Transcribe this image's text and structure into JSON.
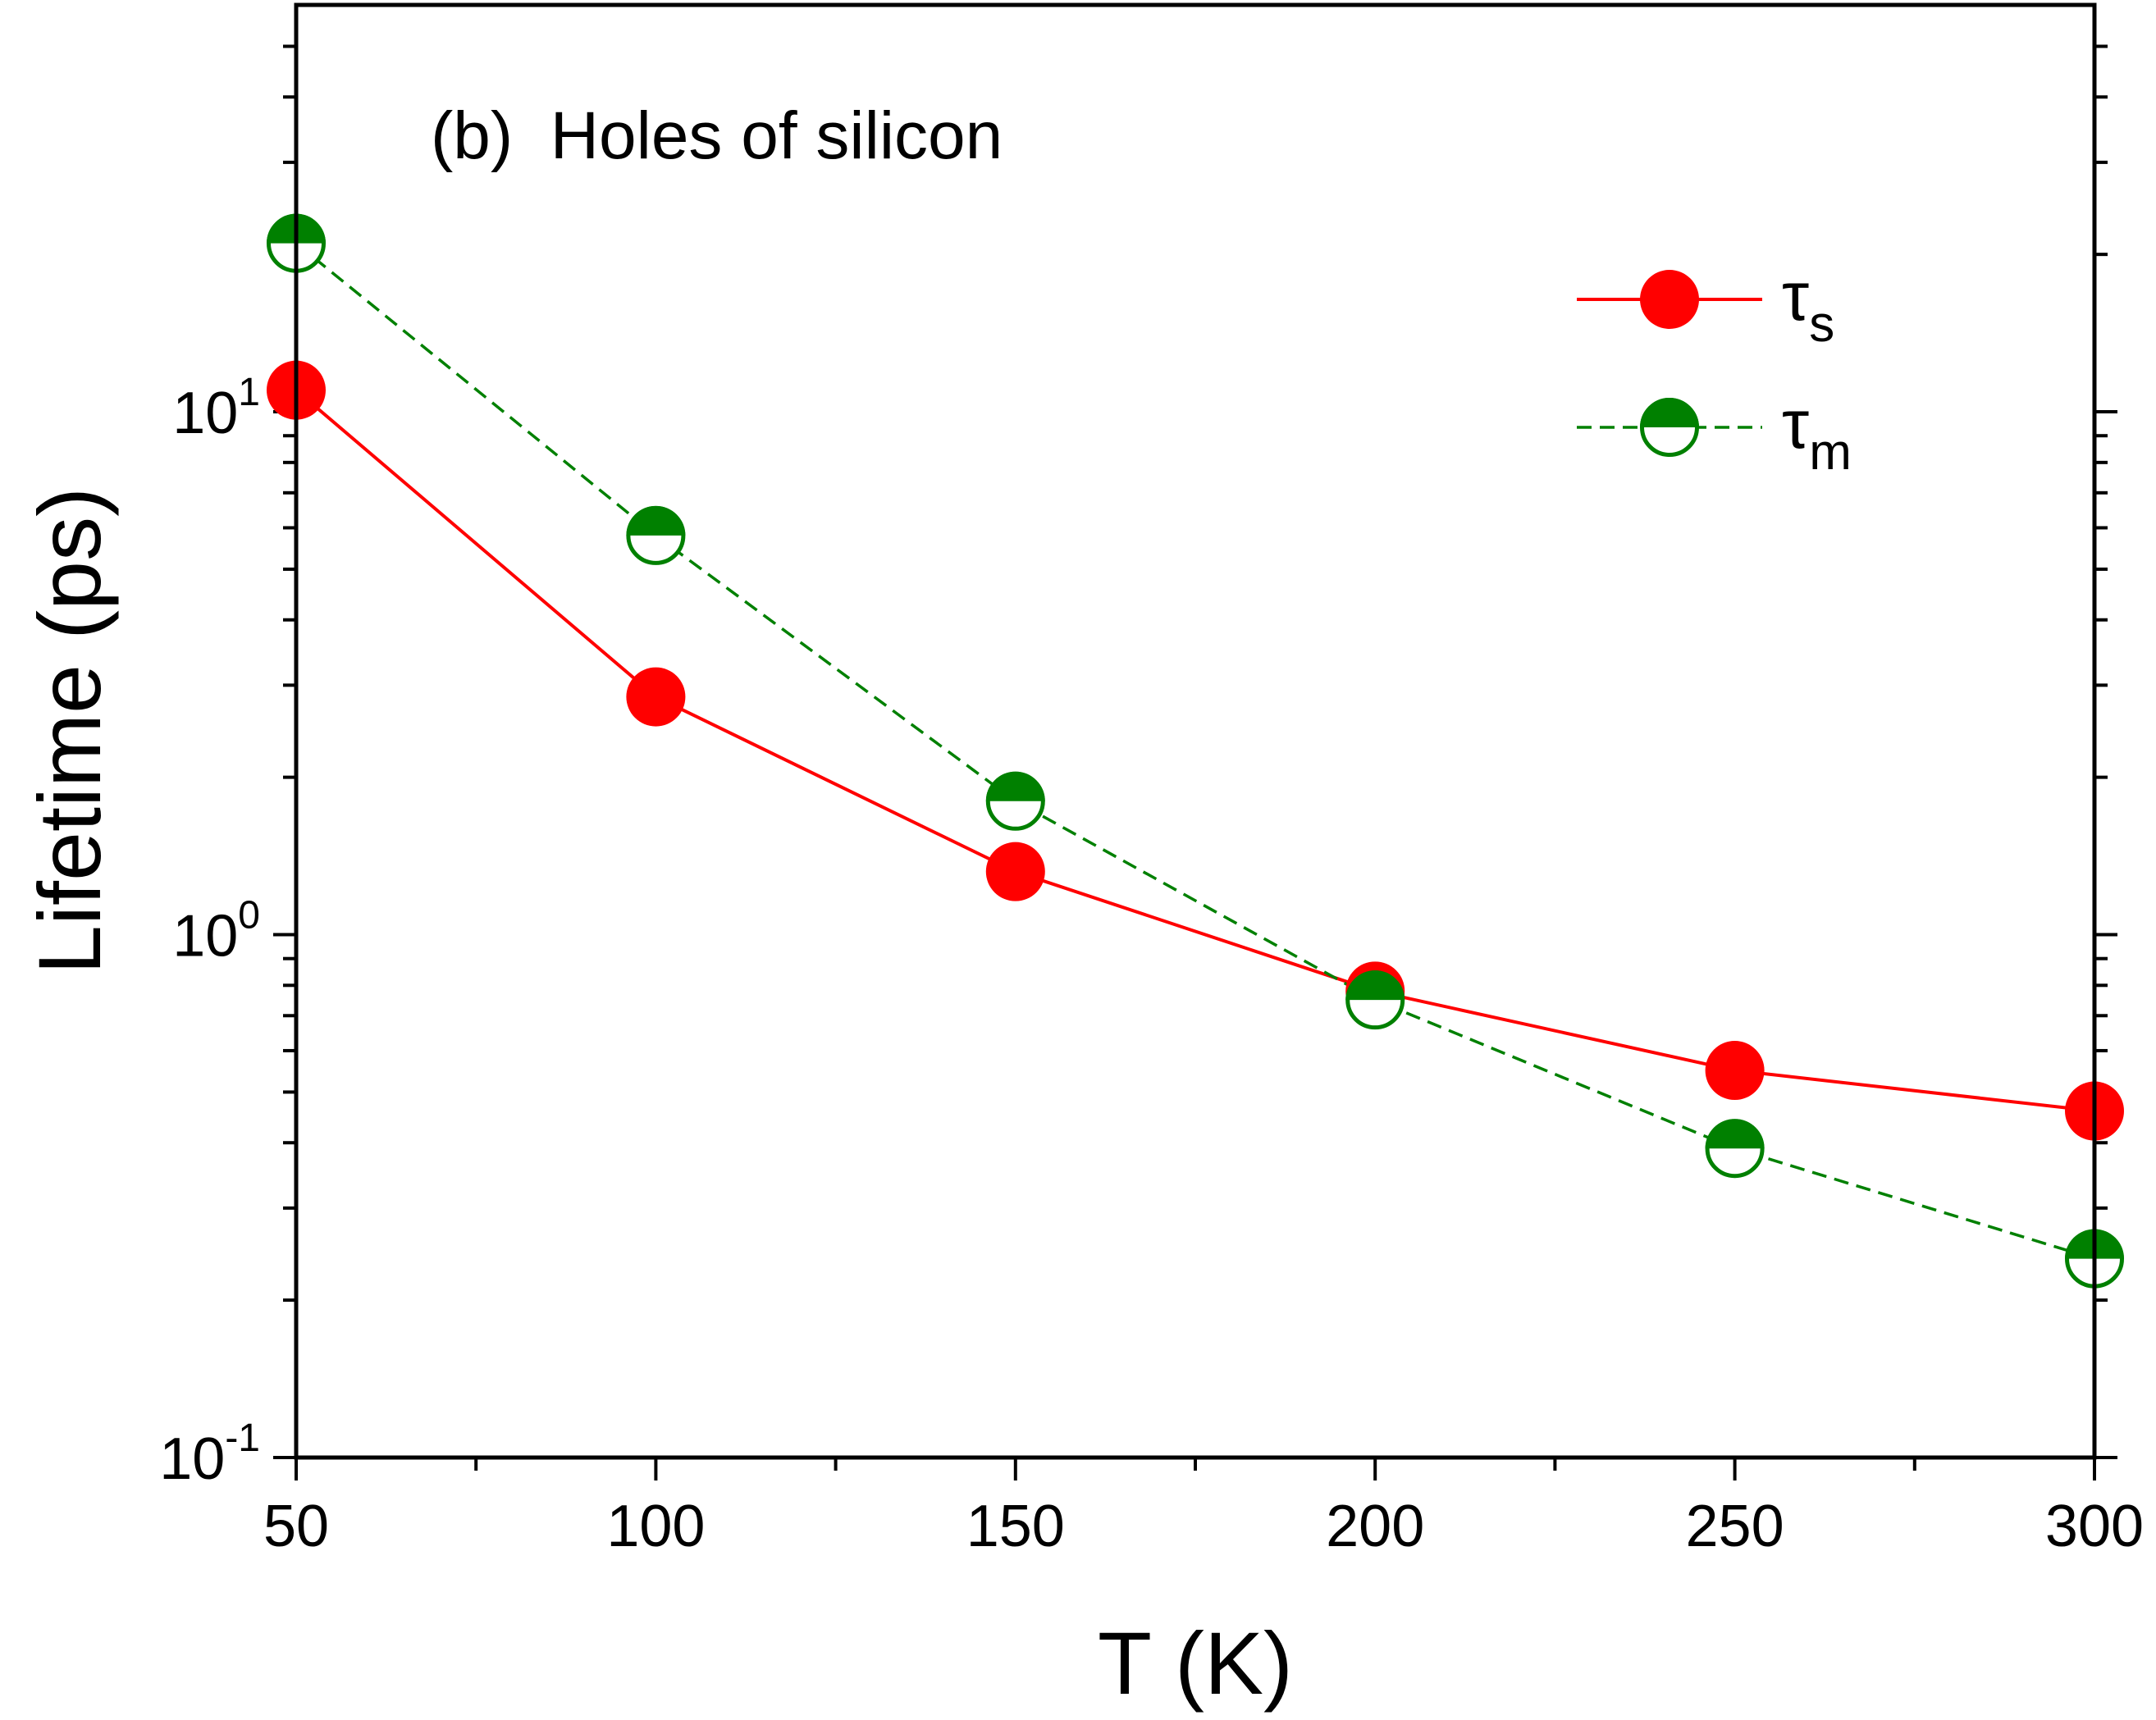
{
  "chart_data": {
    "type": "line",
    "title": "(b)  Holes of silicon",
    "xlabel": "T (K)",
    "ylabel": "Lifetime (ps)",
    "xscale": "linear",
    "yscale": "log",
    "xlim": [
      50,
      300
    ],
    "ylim": [
      0.1,
      60
    ],
    "x_ticks": [
      50,
      100,
      150,
      200,
      250,
      300
    ],
    "x_tick_labels": [
      "50",
      "100",
      "150",
      "200",
      "250",
      "300"
    ],
    "y_ticks": [
      {
        "value": 0.1,
        "base": "10",
        "exp": "-1"
      },
      {
        "value": 1,
        "base": "10",
        "exp": "0"
      },
      {
        "value": 10,
        "base": "10",
        "exp": "1"
      }
    ],
    "x": [
      50,
      100,
      150,
      200,
      250,
      300
    ],
    "series": [
      {
        "name": "τs",
        "label_main": "τ",
        "label_sub": "s",
        "color": "#ff0000",
        "marker": "filled-circle",
        "line": "solid",
        "values": [
          11.0,
          2.85,
          1.32,
          0.78,
          0.55,
          0.46
        ]
      },
      {
        "name": "τm",
        "label_main": "τ",
        "label_sub": "m",
        "color": "#008000",
        "marker": "half-filled-circle",
        "line": "dashed",
        "values": [
          21.0,
          5.8,
          1.8,
          0.75,
          0.39,
          0.24
        ]
      }
    ],
    "legend_position": "top-right",
    "grid": false
  }
}
